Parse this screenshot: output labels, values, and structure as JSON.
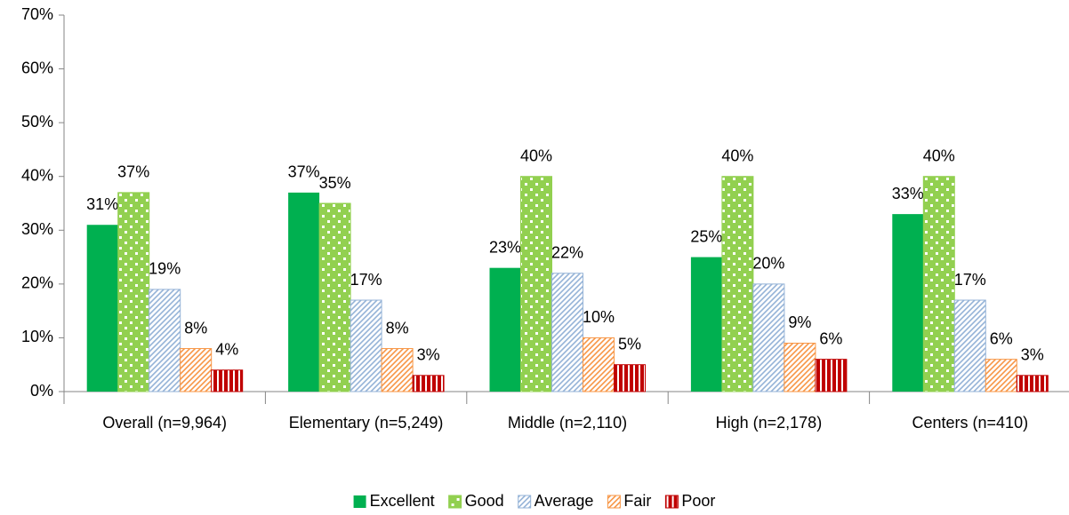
{
  "chart_data": {
    "type": "bar",
    "categories": [
      "Overall (n=9,964)",
      "Elementary (n=5,249)",
      "Middle (n=2,110)",
      "High (n=2,178)",
      "Centers (n=410)"
    ],
    "series": [
      {
        "name": "Excellent",
        "color": "#00b050",
        "pattern": "solid",
        "values": [
          31,
          37,
          23,
          25,
          33
        ],
        "value_labels": [
          "31%",
          "37%",
          "23%",
          "25%",
          "33%"
        ]
      },
      {
        "name": "Good",
        "color": "#92d050",
        "pattern": "dots",
        "values": [
          37,
          35,
          40,
          40,
          40
        ],
        "value_labels": [
          "37%",
          "35%",
          "40%",
          "40%",
          "40%"
        ]
      },
      {
        "name": "Average",
        "color": "#95b3d7",
        "pattern": "diagonal",
        "values": [
          19,
          17,
          22,
          20,
          17
        ],
        "value_labels": [
          "19%",
          "17%",
          "22%",
          "20%",
          "17%"
        ]
      },
      {
        "name": "Fair",
        "color": "#f79646",
        "pattern": "diagonal",
        "values": [
          8,
          8,
          10,
          9,
          6
        ],
        "value_labels": [
          "8%",
          "8%",
          "10%",
          "9%",
          "6%"
        ]
      },
      {
        "name": "Poor",
        "color": "#c00000",
        "pattern": "vertical",
        "values": [
          4,
          3,
          5,
          6,
          3
        ],
        "value_labels": [
          "4%",
          "3%",
          "5%",
          "6%",
          "3%"
        ]
      }
    ],
    "ylim": [
      0,
      70
    ],
    "yticks": [
      {
        "value": 0,
        "label": "0%"
      },
      {
        "value": 10,
        "label": "10%"
      },
      {
        "value": 20,
        "label": "20%"
      },
      {
        "value": 30,
        "label": "30%"
      },
      {
        "value": 40,
        "label": "40%"
      },
      {
        "value": 50,
        "label": "50%"
      },
      {
        "value": 60,
        "label": "60%"
      },
      {
        "value": 70,
        "label": "70%"
      }
    ],
    "grid": false,
    "legend": "bottom"
  }
}
